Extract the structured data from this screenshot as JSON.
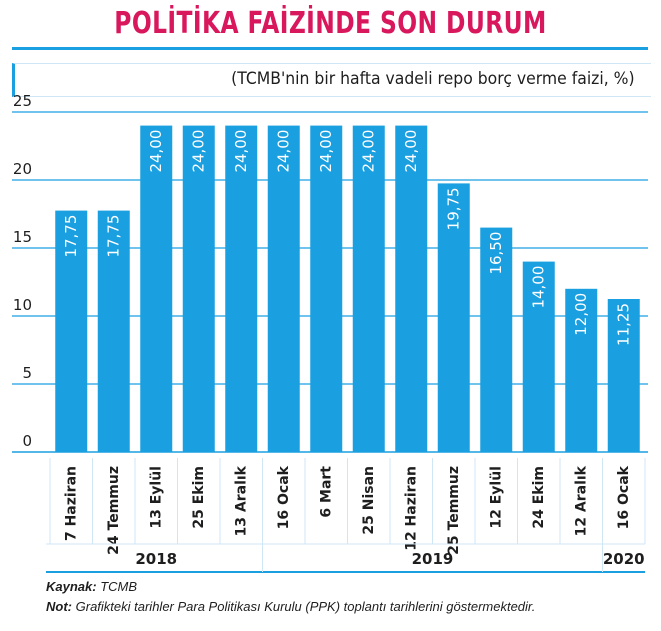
{
  "header": {
    "title": "POLİTİKA FAİZİNDE SON DURUM",
    "subtitle": "(TCMB'nin bir hafta vadeli repo borç verme faizi, %)"
  },
  "chart_data": {
    "type": "bar",
    "categories": [
      "7 Haziran",
      "24 Temmuz",
      "13 Eylül",
      "25 Ekim",
      "13 Aralık",
      "16 Ocak",
      "6 Mart",
      "25 Nisan",
      "12 Haziran",
      "25 Temmuz",
      "12 Eylül",
      "24 Ekim",
      "12 Aralık",
      "16 Ocak"
    ],
    "values": [
      17.75,
      17.75,
      24,
      24,
      24,
      24,
      24,
      24,
      24,
      19.75,
      16.5,
      14,
      12,
      11.25
    ],
    "value_labels": [
      "17,75",
      "17,75",
      "24,00",
      "24,00",
      "24,00",
      "24,00",
      "24,00",
      "24,00",
      "24,00",
      "19,75",
      "16,50",
      "14,00",
      "12,00",
      "11,25"
    ],
    "yticks": [
      "0",
      "5",
      "10",
      "15",
      "20",
      "25"
    ],
    "ylim": [
      0,
      25
    ],
    "years": [
      {
        "label": "2018",
        "start": 0,
        "end": 4
      },
      {
        "label": "2019",
        "start": 5,
        "end": 12
      },
      {
        "label": "2020",
        "start": 13,
        "end": 13
      }
    ],
    "bar_color": "#1a9fe0",
    "grid": true
  },
  "footer": {
    "source_label": "Kaynak:",
    "source_text": "TCMB",
    "note_label": "Not:",
    "note_text": "Grafikteki tarihler Para Politikası Kurulu (PPK) toplantı tarihlerini göstermektedir."
  }
}
